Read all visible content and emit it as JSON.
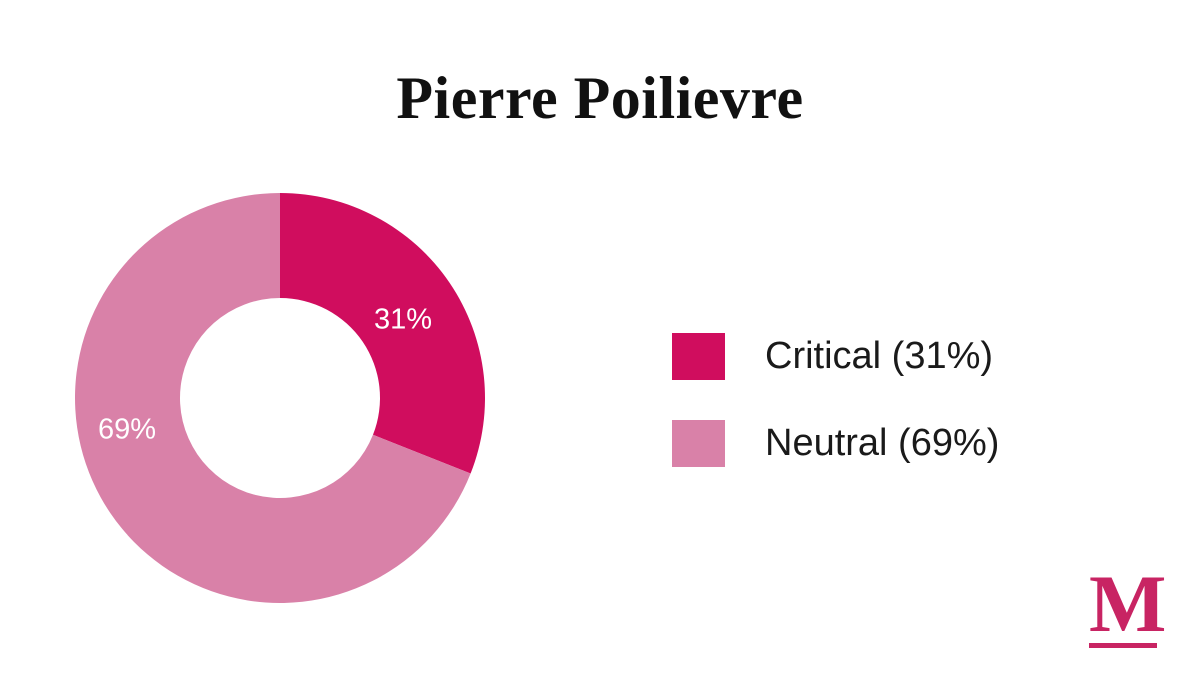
{
  "title": "Pierre Poilievre",
  "chart_data": {
    "type": "pie",
    "subtype": "donut",
    "title": "Pierre Poilievre",
    "categories": [
      "Critical",
      "Neutral"
    ],
    "values": [
      31,
      69
    ],
    "colors": [
      "#D00D5E",
      "#D981A8"
    ],
    "slice_labels": [
      "31%",
      "69%"
    ],
    "slice_label_color": "#ffffff",
    "start_angle": "top",
    "direction": "clockwise",
    "legend_position": "right"
  },
  "legend": {
    "items": [
      {
        "label": "Critical (31%)",
        "color": "#D00D5E"
      },
      {
        "label": "Neutral (69%)",
        "color": "#D981A8"
      }
    ]
  },
  "logo": {
    "letter": "M",
    "color": "#C82463"
  }
}
